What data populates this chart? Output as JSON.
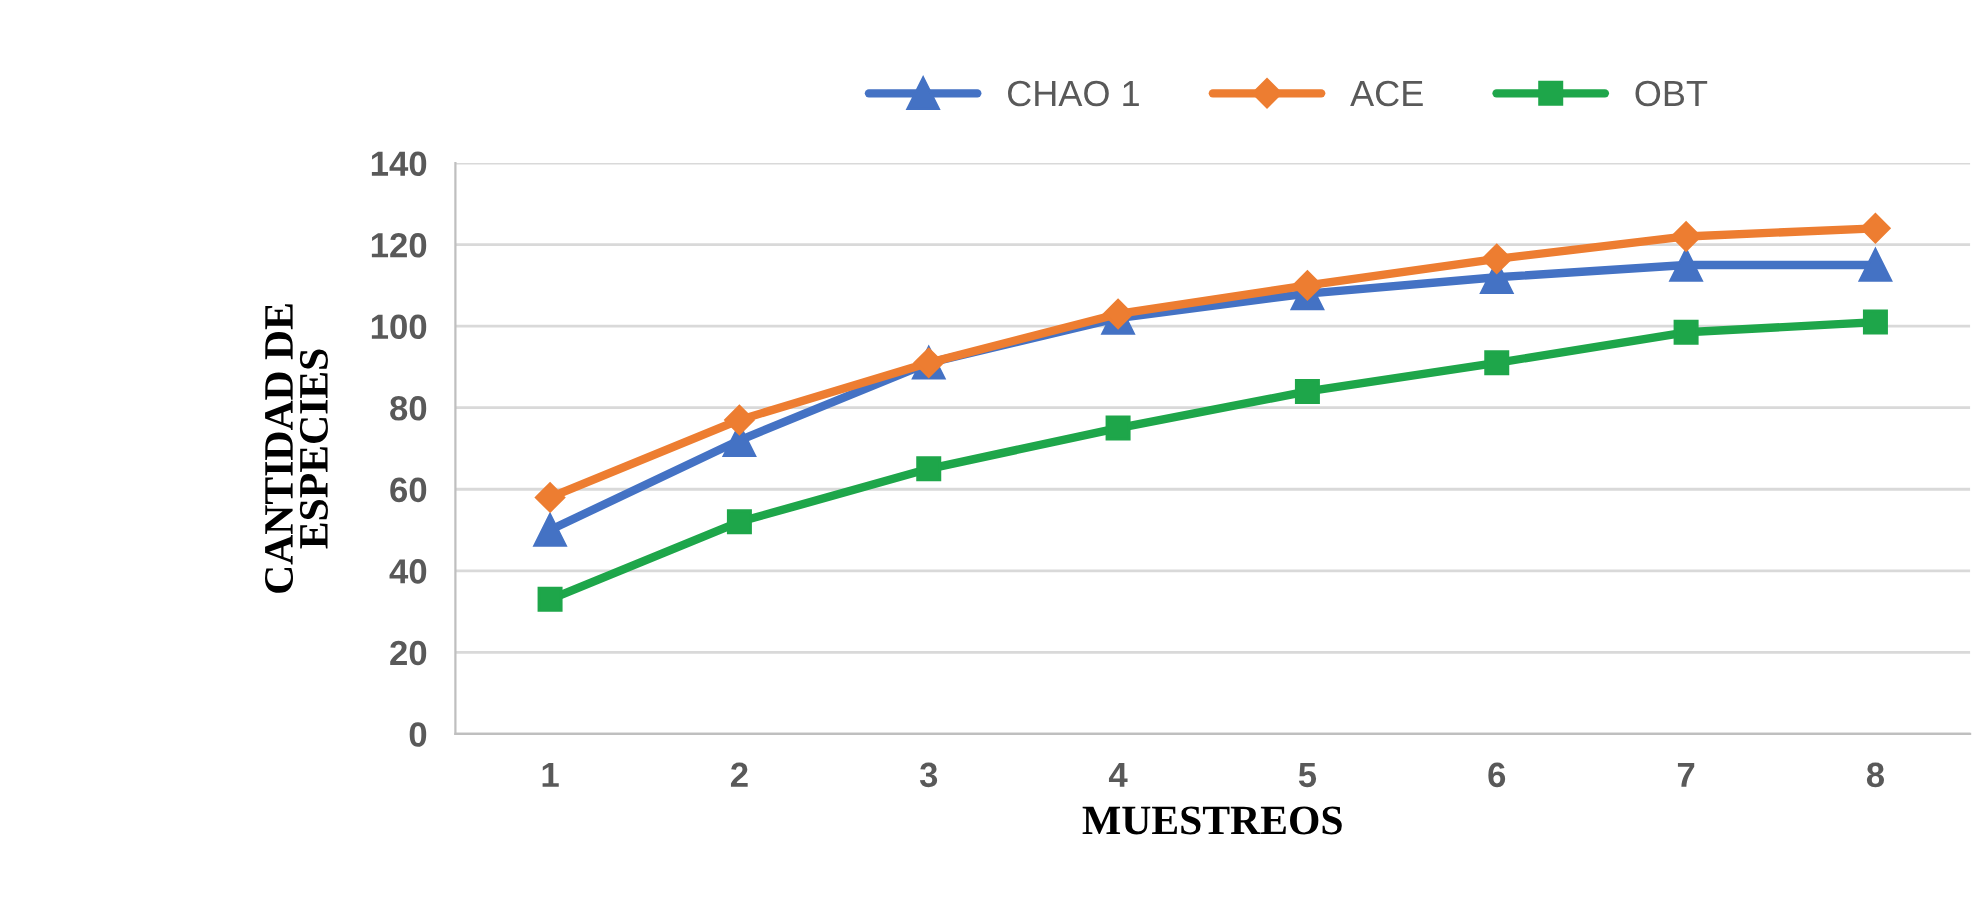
{
  "chart_data": {
    "type": "line",
    "xlabel": "MUESTREOS",
    "ylabel": "CANTIDAD DE\nESPECIES",
    "categories": [
      "1",
      "2",
      "3",
      "4",
      "5",
      "6",
      "7",
      "8"
    ],
    "series": [
      {
        "name": "CHAO 1",
        "color": "#4472c4",
        "marker": "triangle",
        "values": [
          50,
          72,
          91,
          102,
          108,
          112,
          115,
          115
        ]
      },
      {
        "name": "ACE",
        "color": "#ed7d31",
        "marker": "diamond",
        "values": [
          58,
          77,
          91,
          103,
          110,
          116.5,
          122,
          124
        ]
      },
      {
        "name": "OBT",
        "color": "#1ea64a",
        "marker": "square",
        "values": [
          33,
          52,
          65,
          75,
          84,
          91,
          98.5,
          101
        ]
      }
    ],
    "ylim": [
      0,
      140
    ],
    "yticks": [
      0,
      20,
      40,
      60,
      80,
      100,
      120,
      140
    ],
    "grid": "y",
    "legend": "top",
    "line_style": "solid"
  }
}
